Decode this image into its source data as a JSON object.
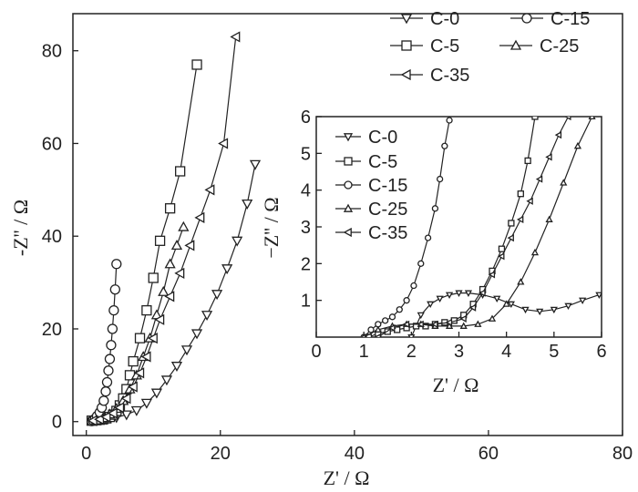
{
  "chart_data": [
    {
      "type": "scatter",
      "title": "",
      "xlabel": "Z' / Ω",
      "ylabel": "-Z'' / Ω",
      "xlim": [
        -2,
        80
      ],
      "ylim": [
        -3,
        88
      ],
      "xticks": [
        "0",
        "20",
        "40",
        "60",
        "80"
      ],
      "yticks": [
        "0",
        "20",
        "40",
        "60",
        "80"
      ],
      "legend_position": "top-right",
      "series": [
        {
          "name": "C-0",
          "marker": "triangle-down",
          "x": [
            1.5,
            3.0,
            4.5,
            6.0,
            7.5,
            9.0,
            10.5,
            12.0,
            13.5,
            15.0,
            16.5,
            18.0,
            19.5,
            21.0,
            22.5,
            24.0,
            25.2
          ],
          "y": [
            0.3,
            0.5,
            0.9,
            1.5,
            2.4,
            4.0,
            6.2,
            9.0,
            12.0,
            15.5,
            19.0,
            23.0,
            27.5,
            33.0,
            39.0,
            47.0,
            55.5
          ]
        },
        {
          "name": "C-5",
          "marker": "square",
          "x": [
            0.8,
            1.5,
            2.0,
            2.5,
            3.0,
            3.5,
            4.0,
            4.5,
            5.0,
            5.5,
            6.0,
            6.5,
            7.0,
            8.0,
            9.0,
            10.0,
            11.0,
            12.5,
            14.0,
            16.5
          ],
          "y": [
            0.2,
            0.3,
            0.4,
            0.5,
            0.7,
            1.0,
            1.5,
            2.3,
            3.5,
            5.0,
            7.0,
            10.0,
            13.0,
            18.0,
            24.0,
            31.0,
            39.0,
            46.0,
            54.0,
            77.0
          ]
        },
        {
          "name": "C-15",
          "marker": "circle",
          "x": [
            0.8,
            1.0,
            1.3,
            1.6,
            2.0,
            2.3,
            2.6,
            2.9,
            3.1,
            3.3,
            3.5,
            3.7,
            3.9,
            4.1,
            4.3,
            4.5
          ],
          "y": [
            0.1,
            0.3,
            0.6,
            1.2,
            2.0,
            3.0,
            4.5,
            6.5,
            8.5,
            11.0,
            13.5,
            16.5,
            20.0,
            24.0,
            28.5,
            34.0
          ]
        },
        {
          "name": "C-25",
          "marker": "triangle-up",
          "x": [
            1.5,
            2.5,
            3.5,
            4.5,
            5.5,
            6.5,
            7.5,
            8.5,
            9.5,
            10.5,
            11.5,
            12.5,
            13.5,
            14.5
          ],
          "y": [
            0.3,
            0.8,
            1.6,
            2.8,
            4.5,
            7.0,
            10.0,
            14.0,
            18.0,
            23.0,
            28.0,
            34.0,
            38.0,
            42.0
          ]
        },
        {
          "name": "C-35",
          "marker": "triangle-left",
          "x": [
            1.0,
            2.0,
            3.0,
            4.0,
            5.0,
            6.0,
            7.0,
            8.0,
            9.0,
            10.0,
            11.0,
            12.5,
            14.0,
            15.5,
            17.0,
            18.5,
            20.5,
            22.3
          ],
          "y": [
            0.2,
            0.5,
            1.0,
            1.8,
            3.0,
            5.0,
            7.5,
            10.5,
            14.0,
            18.0,
            22.0,
            27.0,
            32.0,
            38.0,
            44.0,
            50.0,
            60.0,
            83.0
          ]
        }
      ]
    },
    {
      "type": "scatter",
      "title": "",
      "xlabel": "Z' / Ω",
      "ylabel": "−Z'' / Ω",
      "xlim": [
        0,
        6
      ],
      "ylim": [
        0,
        6
      ],
      "xticks": [
        "0",
        "1",
        "2",
        "3",
        "4",
        "5",
        "6"
      ],
      "yticks": [
        "1",
        "2",
        "3",
        "4",
        "5",
        "6"
      ],
      "legend_position": "top-left",
      "series": [
        {
          "name": "C-0",
          "marker": "triangle-down",
          "x": [
            2.0,
            2.2,
            2.4,
            2.6,
            2.8,
            3.0,
            3.2,
            3.5,
            3.8,
            4.1,
            4.4,
            4.7,
            5.0,
            5.3,
            5.6,
            5.95
          ],
          "y": [
            0.0,
            0.6,
            0.9,
            1.05,
            1.15,
            1.2,
            1.2,
            1.15,
            1.05,
            0.9,
            0.75,
            0.7,
            0.75,
            0.85,
            1.0,
            1.15
          ]
        },
        {
          "name": "C-5",
          "marker": "square",
          "x": [
            1.1,
            1.3,
            1.5,
            1.7,
            1.9,
            2.1,
            2.3,
            2.5,
            2.7,
            2.9,
            3.1,
            3.3,
            3.5,
            3.7,
            3.9,
            4.1,
            4.3,
            4.45,
            4.6
          ],
          "y": [
            0.0,
            0.1,
            0.15,
            0.2,
            0.25,
            0.3,
            0.3,
            0.35,
            0.4,
            0.45,
            0.6,
            0.9,
            1.3,
            1.8,
            2.4,
            3.1,
            3.9,
            4.8,
            6.0
          ]
        },
        {
          "name": "C-15",
          "marker": "circle",
          "x": [
            1.0,
            1.15,
            1.3,
            1.45,
            1.6,
            1.75,
            1.9,
            2.05,
            2.2,
            2.35,
            2.5,
            2.6,
            2.7,
            2.8
          ],
          "y": [
            0.0,
            0.2,
            0.35,
            0.45,
            0.55,
            0.75,
            1.0,
            1.4,
            2.0,
            2.7,
            3.5,
            4.3,
            5.2,
            5.9
          ]
        },
        {
          "name": "C-25",
          "marker": "triangle-up",
          "x": [
            1.0,
            1.3,
            1.6,
            1.9,
            2.2,
            2.5,
            2.8,
            3.1,
            3.4,
            3.7,
            4.0,
            4.3,
            4.6,
            4.9,
            5.2,
            5.5,
            5.8
          ],
          "y": [
            0.0,
            0.2,
            0.3,
            0.35,
            0.35,
            0.3,
            0.3,
            0.3,
            0.35,
            0.5,
            0.9,
            1.5,
            2.3,
            3.2,
            4.2,
            5.2,
            6.0
          ]
        },
        {
          "name": "C-35",
          "marker": "triangle-left",
          "x": [
            1.3,
            1.6,
            1.9,
            2.2,
            2.5,
            2.8,
            3.1,
            3.3,
            3.5,
            3.7,
            3.9,
            4.1,
            4.3,
            4.5,
            4.7,
            4.9,
            5.1,
            5.3
          ],
          "y": [
            0.0,
            0.25,
            0.35,
            0.35,
            0.35,
            0.4,
            0.5,
            0.8,
            1.2,
            1.7,
            2.2,
            2.7,
            3.2,
            3.7,
            4.3,
            4.9,
            5.5,
            6.0
          ]
        }
      ]
    }
  ]
}
